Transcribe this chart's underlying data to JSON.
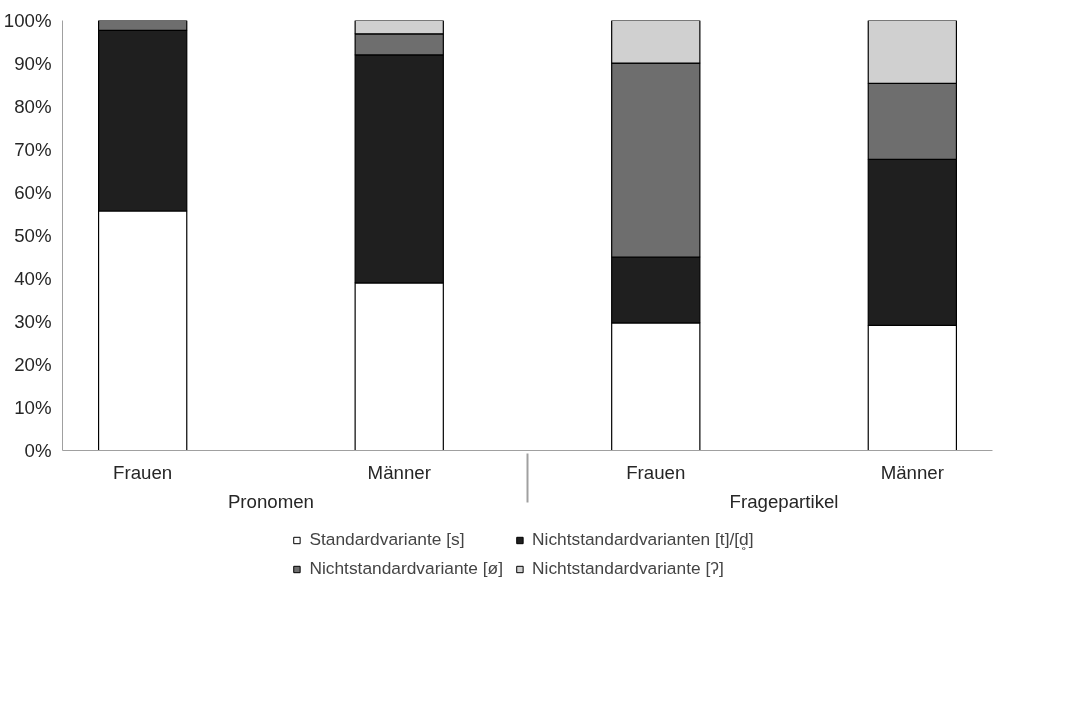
{
  "chart_data": {
    "type": "bar",
    "stacked": true,
    "categories": [
      "Frauen",
      "Männer",
      "Frauen",
      "Männer"
    ],
    "annotations": [
      "Pronomen",
      "Fragepartikel"
    ],
    "series": [
      {
        "name": "Standardvariante [s]",
        "color": "#ffffff",
        "values": [
          55.7,
          39.0,
          29.7,
          29.1
        ]
      },
      {
        "name": "Nichtstandardvarianten [t]/[d̥]",
        "color": "#1f1f1f",
        "values": [
          42.0,
          53.0,
          15.3,
          38.6
        ]
      },
      {
        "name": "Nichtstandardvariante [ø]",
        "color": "#6e6e6e",
        "values": [
          2.3,
          4.9,
          45.1,
          17.7
        ]
      },
      {
        "name": "Nichtstandardvariante [ʔ]",
        "color": "#d0d0d0",
        "values": [
          null,
          3.1,
          9.9,
          14.6
        ]
      }
    ],
    "ylim": [
      0,
      100
    ],
    "yticks": [
      {
        "value": 0,
        "label": "0%"
      },
      {
        "value": 10,
        "label": "10%"
      },
      {
        "value": 20,
        "label": "20%"
      },
      {
        "value": 30,
        "label": "30%"
      },
      {
        "value": 40,
        "label": "40%"
      },
      {
        "value": 50,
        "label": "50%"
      },
      {
        "value": 60,
        "label": "60%"
      },
      {
        "value": 70,
        "label": "70%"
      },
      {
        "value": 80,
        "label": "80%"
      },
      {
        "value": 90,
        "label": "90%"
      },
      {
        "value": 100,
        "label": "100%"
      }
    ],
    "grid": false,
    "legend": "bottom"
  }
}
